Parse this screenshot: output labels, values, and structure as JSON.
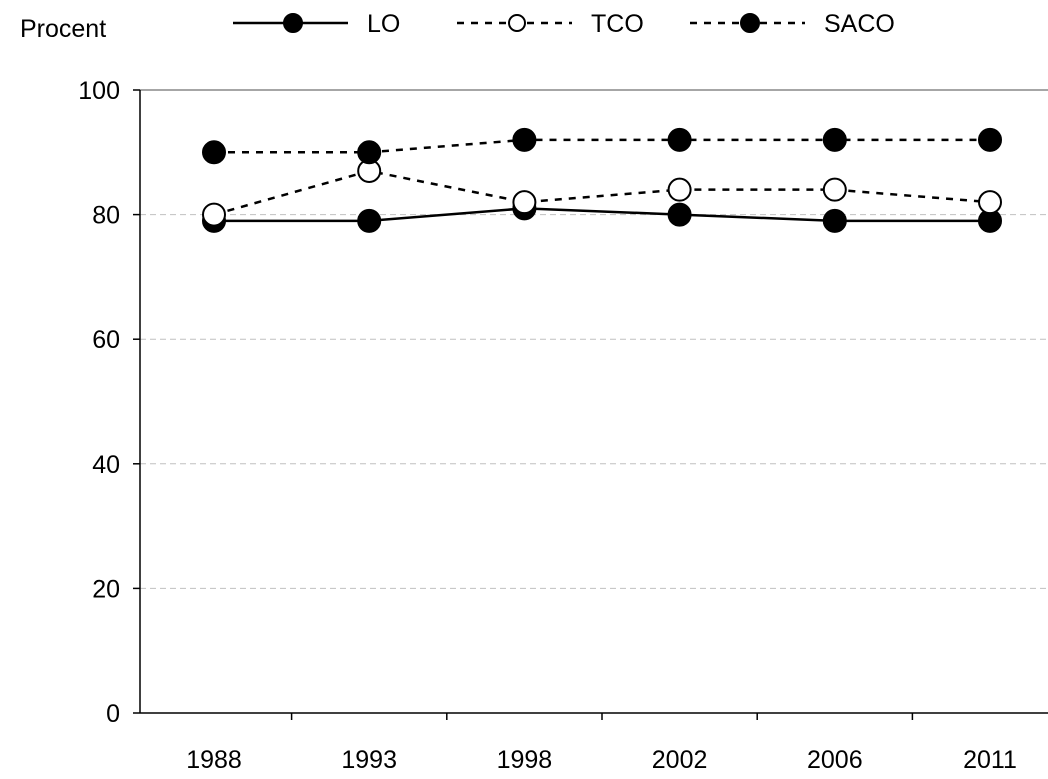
{
  "chart_data": {
    "type": "line",
    "ylabel": "Procent",
    "categories": [
      "1988",
      "1993",
      "1998",
      "2002",
      "2006",
      "2011"
    ],
    "ylim": [
      0,
      100
    ],
    "yticks": [
      "0",
      "20",
      "40",
      "60",
      "80",
      "100"
    ],
    "grid": true,
    "legend_position": "top",
    "series": [
      {
        "name": "LO",
        "values": [
          79,
          79,
          81,
          80,
          79,
          79
        ],
        "line": "solid",
        "marker": "filled"
      },
      {
        "name": "TCO",
        "values": [
          80,
          87,
          82,
          84,
          84,
          82
        ],
        "line": "dashed",
        "marker": "open"
      },
      {
        "name": "SACO",
        "values": [
          90,
          90,
          92,
          92,
          92,
          92
        ],
        "line": "dashed",
        "marker": "filled"
      }
    ],
    "colors": {
      "line": "#000000",
      "grid": "#c0c0c0",
      "background": "#ffffff"
    }
  }
}
